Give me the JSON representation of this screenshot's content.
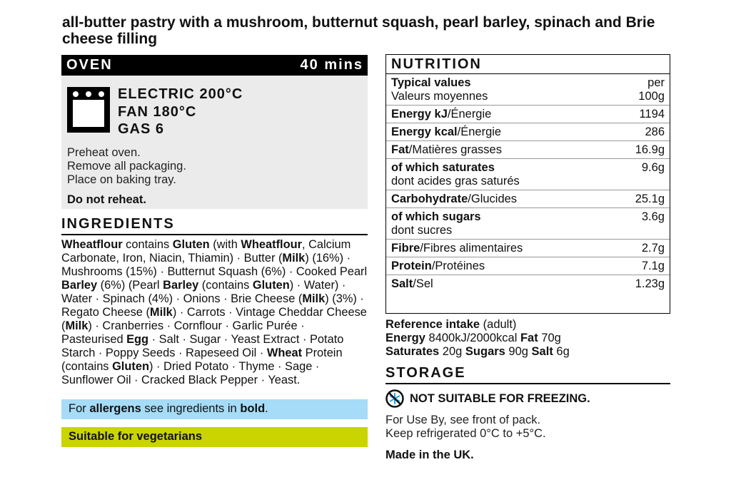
{
  "title": "all-butter pastry with a mushroom, butternut squash, pearl barley, spinach and Brie cheese filling",
  "oven": {
    "label": "OVEN",
    "time": "40 mins",
    "icon": "oven-icon",
    "electric": "ELECTRIC 200°C",
    "fan": "FAN 180°C",
    "gas": "GAS 6",
    "steps": [
      "Preheat oven.",
      "Remove all packaging.",
      "Place on baking tray."
    ],
    "warning": "Do not reheat."
  },
  "ingredients": {
    "heading": "INGREDIENTS",
    "segments": [
      {
        "t": "Wheatflour",
        "b": true
      },
      {
        "t": " contains "
      },
      {
        "t": "Gluten",
        "b": true
      },
      {
        "t": " (with "
      },
      {
        "t": "Wheatflour",
        "b": true
      },
      {
        "t": ", Calcium Carbonate, Iron, Niacin, Thiamin) · Butter ("
      },
      {
        "t": "Milk",
        "b": true
      },
      {
        "t": ") (16%) · Mushrooms (15%) · Butternut Squash (6%) · Cooked Pearl "
      },
      {
        "t": "Barley",
        "b": true
      },
      {
        "t": " (6%) (Pearl "
      },
      {
        "t": "Barley",
        "b": true
      },
      {
        "t": " (contains "
      },
      {
        "t": "Gluten",
        "b": true
      },
      {
        "t": ") · Water) · Water · Spinach (4%) · Onions · Brie Cheese ("
      },
      {
        "t": "Milk",
        "b": true
      },
      {
        "t": ") (3%) · Regato Cheese ("
      },
      {
        "t": "Milk",
        "b": true
      },
      {
        "t": ") · Carrots · Vintage Cheddar Cheese ("
      },
      {
        "t": "Milk",
        "b": true
      },
      {
        "t": ") · Cranberries · Cornflour · Garlic Purée · Pasteurised "
      },
      {
        "t": "Egg",
        "b": true
      },
      {
        "t": " · Salt · Sugar · Yeast Extract · Potato Starch · Poppy Seeds · Rapeseed Oil · "
      },
      {
        "t": "Wheat",
        "b": true
      },
      {
        "t": " Protein (contains "
      },
      {
        "t": "Gluten",
        "b": true
      },
      {
        "t": ") · Dried Potato · Thyme · Sage · Sunflower Oil · Cracked Black Pepper · Yeast."
      }
    ]
  },
  "allergens": {
    "pre": "For ",
    "b1": "allergens",
    "mid": " see ingredients in ",
    "b2": "bold",
    "post": ".",
    "color": "#a6dcf7"
  },
  "vegetarian": {
    "label": "Suitable for vegetarians",
    "color": "#c9d400"
  },
  "nutrition": {
    "heading": "NUTRITION",
    "rows": [
      {
        "bold": "Typical values",
        "normal": "",
        "sub": "Valeurs moyennes",
        "value": "per",
        "value2": "100g"
      },
      {
        "bold": "Energy kJ",
        "normal": "/Énergie",
        "value": "1194"
      },
      {
        "bold": "Energy kcal",
        "normal": "/Énergie",
        "value": "286"
      },
      {
        "bold": "Fat",
        "normal": "/Matières grasses",
        "value": "16.9g"
      },
      {
        "bold": "of which saturates",
        "normal": "",
        "sub": "dont acides gras saturés",
        "value": "9.6g"
      },
      {
        "bold": "Carbohydrate",
        "normal": "/Glucides",
        "value": "25.1g"
      },
      {
        "bold": "of which sugars",
        "normal": "",
        "sub": "dont sucres",
        "value": "3.6g"
      },
      {
        "bold": "Fibre",
        "normal": "/Fibres alimentaires",
        "value": "2.7g"
      },
      {
        "bold": "Protein",
        "normal": "/Protéines",
        "value": "7.1g"
      },
      {
        "bold": "Salt",
        "normal": "/Sel",
        "value": "1.23g"
      }
    ]
  },
  "reference": {
    "l1b": "Reference intake",
    "l1": " (adult)",
    "energyb": "Energy",
    "energy": " 8400kJ/2000kcal ",
    "fatb": "Fat",
    "fat": " 70g",
    "satb": "Saturates",
    "sat": " 20g ",
    "sugb": "Sugars",
    "sug": " 90g ",
    "saltb": "Salt",
    "salt": " 6g"
  },
  "storage": {
    "heading": "STORAGE",
    "icon": "not-for-freezing-icon",
    "freeze": "NOT SUITABLE FOR FREEZING.",
    "l1": "For Use By, see front of pack.",
    "l2": "Keep refrigerated 0°C to +5°C.",
    "made": "Made in the UK."
  }
}
